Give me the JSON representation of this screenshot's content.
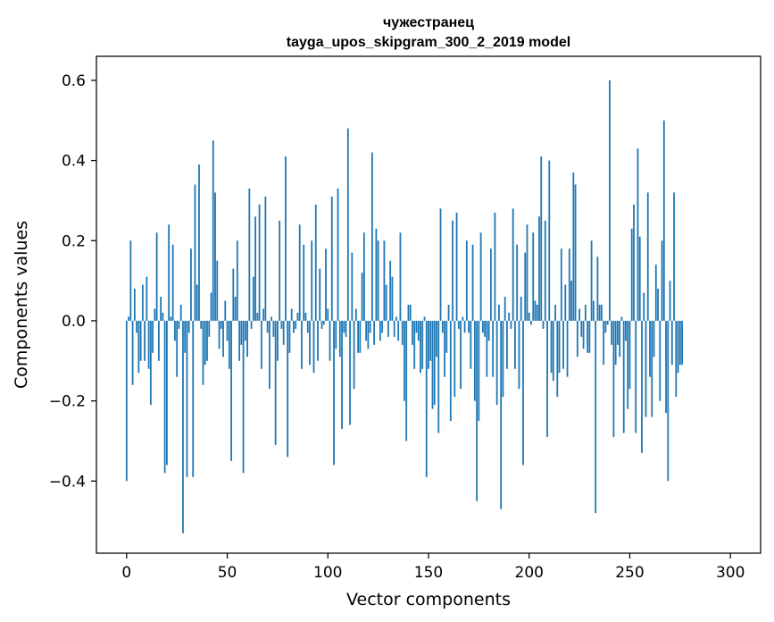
{
  "chart_data": {
    "type": "bar",
    "title": "чужестранец",
    "subtitle": "tayga_upos_skipgram_300_2_2019 model",
    "xlabel": "Vector components",
    "ylabel": "Components values",
    "xlim": [
      -15,
      315
    ],
    "ylim": [
      -0.58,
      0.66
    ],
    "xticks": [
      0,
      50,
      100,
      150,
      200,
      250,
      300
    ],
    "yticks": [
      -0.4,
      -0.2,
      0.0,
      0.2,
      0.4,
      0.6
    ],
    "ytick_labels": [
      "−0.4",
      "−0.2",
      "0.0",
      "0.2",
      "0.4",
      "0.6"
    ],
    "bar_color": "#1f77b4",
    "grid": false,
    "values": [
      -0.4,
      0.01,
      0.2,
      -0.16,
      0.08,
      -0.03,
      -0.13,
      -0.1,
      0.09,
      -0.1,
      0.11,
      -0.12,
      -0.21,
      -0.08,
      0.03,
      0.22,
      -0.1,
      0.06,
      0.02,
      -0.38,
      -0.36,
      0.24,
      0.01,
      0.19,
      -0.05,
      -0.14,
      -0.02,
      0.04,
      -0.53,
      -0.08,
      -0.39,
      -0.03,
      0.18,
      -0.39,
      0.34,
      0.09,
      0.39,
      -0.02,
      -0.16,
      -0.11,
      -0.1,
      -0.04,
      0.07,
      0.45,
      0.32,
      0.15,
      -0.07,
      -0.02,
      -0.09,
      0.05,
      -0.05,
      -0.12,
      -0.35,
      0.13,
      0.06,
      0.2,
      -0.1,
      -0.06,
      -0.38,
      -0.05,
      -0.09,
      0.33,
      -0.02,
      0.11,
      0.26,
      0.02,
      0.29,
      -0.12,
      0.03,
      0.31,
      -0.03,
      -0.17,
      0.01,
      -0.04,
      -0.31,
      -0.1,
      0.25,
      -0.02,
      -0.06,
      0.41,
      -0.34,
      -0.08,
      0.03,
      -0.03,
      -0.02,
      0.02,
      0.24,
      -0.12,
      0.19,
      0.02,
      -0.03,
      -0.11,
      0.2,
      -0.13,
      0.29,
      -0.1,
      0.13,
      -0.02,
      -0.01,
      0.18,
      0.03,
      -0.1,
      0.31,
      -0.36,
      -0.07,
      0.33,
      -0.09,
      -0.27,
      -0.03,
      -0.04,
      0.48,
      -0.26,
      0.17,
      -0.17,
      0.03,
      -0.08,
      -0.08,
      0.12,
      0.22,
      -0.05,
      -0.07,
      -0.03,
      0.42,
      -0.06,
      0.23,
      0.2,
      -0.05,
      -0.03,
      0.2,
      0.09,
      -0.04,
      0.15,
      0.11,
      -0.04,
      0.01,
      -0.05,
      0.22,
      -0.06,
      -0.2,
      -0.3,
      0.04,
      0.04,
      -0.06,
      -0.12,
      -0.03,
      -0.05,
      -0.13,
      -0.12,
      0.01,
      -0.39,
      -0.12,
      -0.1,
      -0.22,
      -0.21,
      -0.09,
      -0.28,
      0.28,
      -0.03,
      -0.14,
      -0.08,
      0.04,
      -0.25,
      0.25,
      -0.19,
      0.27,
      -0.02,
      -0.17,
      0.01,
      -0.03,
      0.2,
      -0.03,
      -0.12,
      0.19,
      -0.2,
      -0.45,
      -0.25,
      0.22,
      -0.03,
      -0.04,
      -0.14,
      -0.05,
      0.18,
      -0.14,
      0.27,
      -0.21,
      0.04,
      -0.47,
      -0.19,
      0.06,
      -0.12,
      0.02,
      -0.02,
      0.28,
      -0.12,
      0.19,
      -0.17,
      0.06,
      -0.36,
      0.17,
      0.24,
      0.02,
      -0.01,
      0.22,
      0.05,
      0.04,
      0.26,
      0.41,
      -0.02,
      0.25,
      -0.29,
      0.4,
      -0.13,
      -0.15,
      0.04,
      -0.19,
      -0.13,
      0.18,
      -0.12,
      0.09,
      -0.14,
      0.18,
      0.1,
      0.37,
      0.34,
      -0.09,
      0.03,
      -0.04,
      -0.07,
      0.04,
      -0.08,
      -0.08,
      0.2,
      0.05,
      -0.48,
      0.16,
      0.04,
      0.04,
      -0.11,
      -0.03,
      -0.01,
      0.6,
      -0.06,
      -0.29,
      -0.11,
      -0.06,
      -0.09,
      0.01,
      -0.28,
      -0.05,
      -0.22,
      -0.17,
      0.23,
      0.29,
      -0.28,
      0.43,
      0.21,
      -0.33,
      0.07,
      -0.24,
      0.32,
      -0.14,
      -0.24,
      -0.09,
      0.14,
      0.08,
      -0.2,
      0.2,
      0.5,
      -0.23,
      -0.4,
      0.1,
      -0.11,
      0.32,
      -0.19,
      -0.13,
      -0.11,
      -0.11
    ]
  }
}
